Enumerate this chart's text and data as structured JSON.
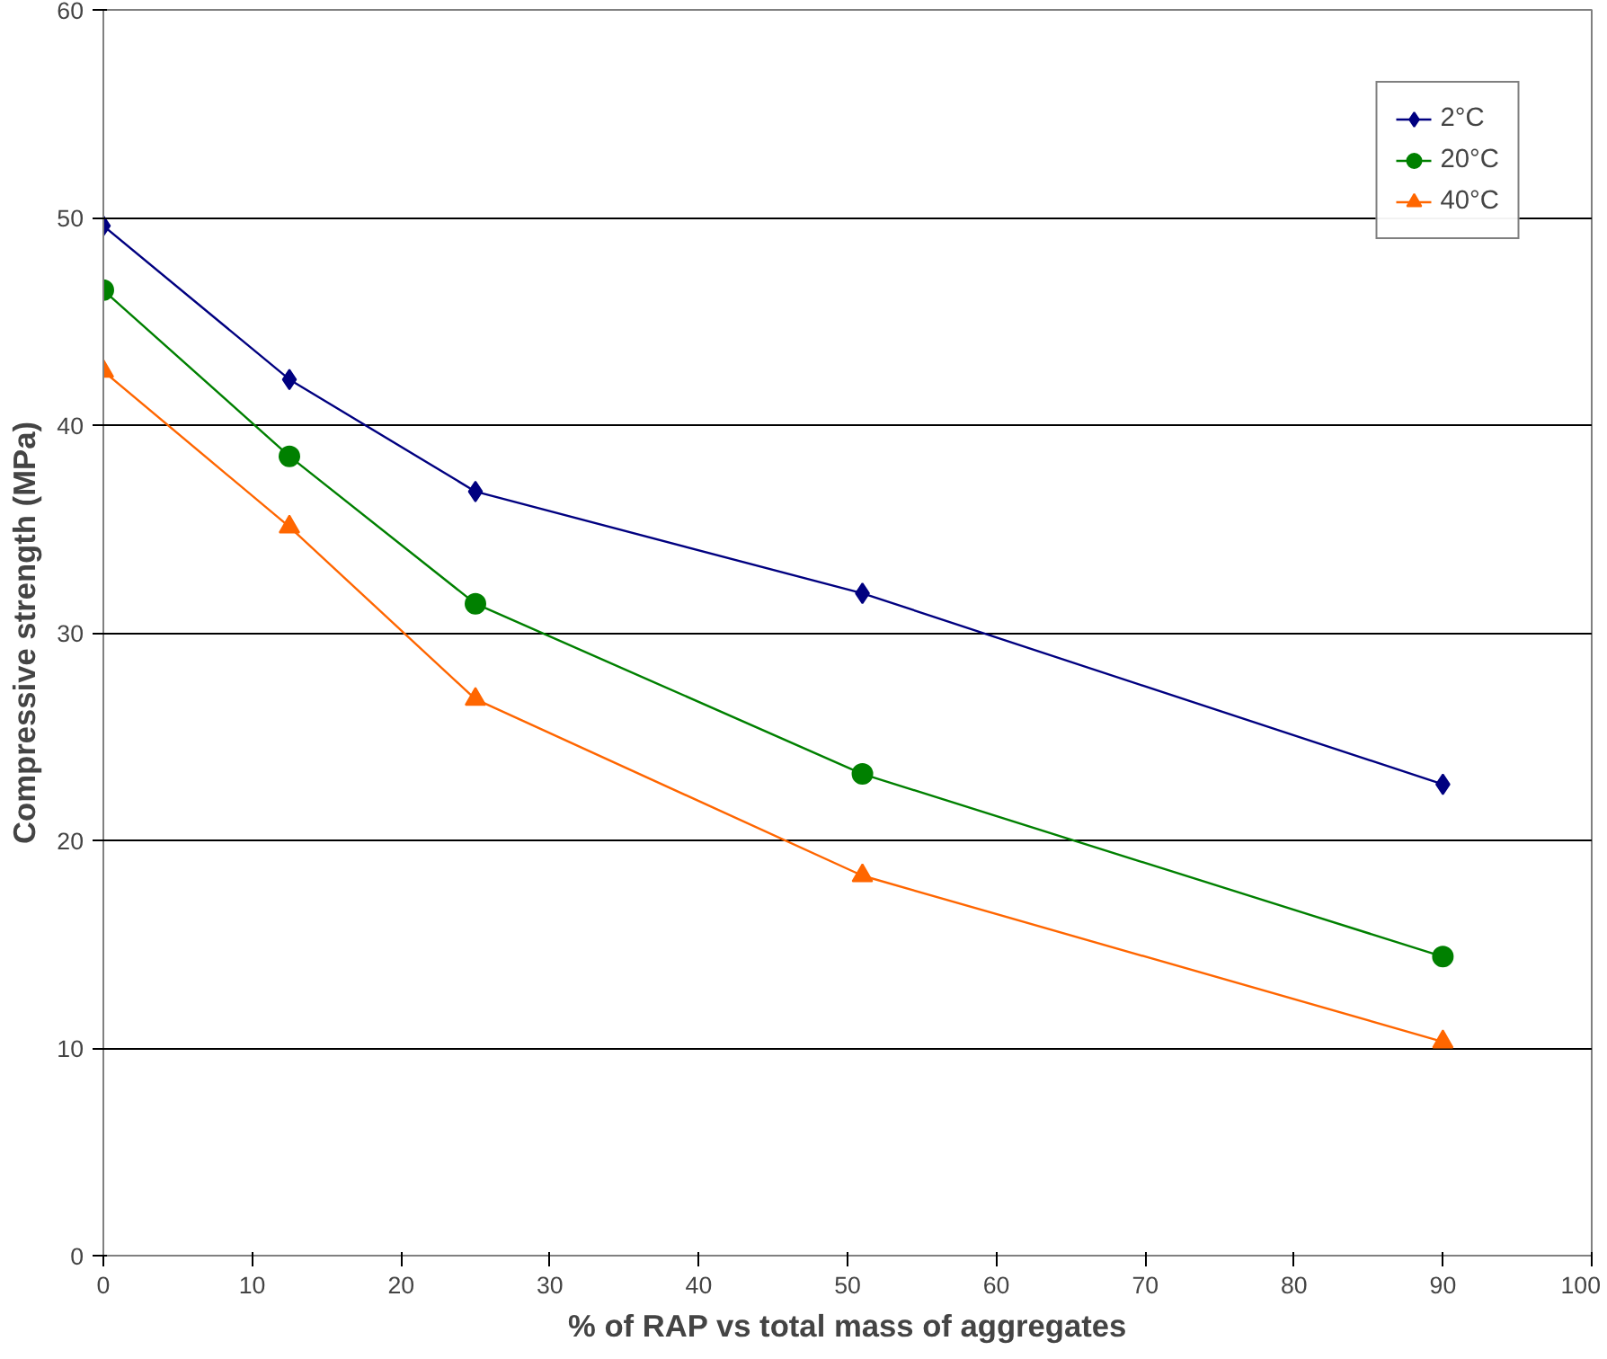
{
  "chart_data": {
    "type": "line",
    "xlabel": "% of RAP vs total mass of aggregates",
    "ylabel": "Compressive strength (MPa)",
    "x": [
      0,
      12.5,
      25,
      51,
      90
    ],
    "series": [
      {
        "name": "2°C",
        "color": "#000080",
        "marker": "diamond",
        "values": [
          49.6,
          42.2,
          36.8,
          31.9,
          22.7
        ]
      },
      {
        "name": "20°C",
        "color": "#008000",
        "marker": "circle",
        "values": [
          46.5,
          38.5,
          31.4,
          23.2,
          14.4
        ]
      },
      {
        "name": "40°C",
        "color": "#ff6600",
        "marker": "triangle",
        "values": [
          42.6,
          35.1,
          26.8,
          18.3,
          10.3
        ]
      }
    ],
    "xlim": [
      0,
      100
    ],
    "xticks": [
      0,
      10,
      20,
      30,
      40,
      50,
      60,
      70,
      80,
      90,
      100
    ],
    "ylim": [
      0,
      60
    ],
    "yticks": [
      0,
      10,
      20,
      30,
      40,
      50,
      60
    ],
    "grid": "y",
    "legend": "top right",
    "line_style": "solid"
  }
}
